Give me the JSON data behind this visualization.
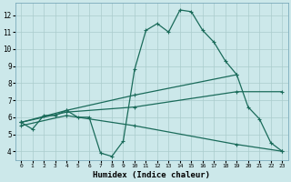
{
  "xlabel": "Humidex (Indice chaleur)",
  "ylabel": "",
  "xlim": [
    -0.5,
    23.5
  ],
  "ylim": [
    3.5,
    12.7
  ],
  "yticks": [
    4,
    5,
    6,
    7,
    8,
    9,
    10,
    11,
    12
  ],
  "xticks": [
    0,
    1,
    2,
    3,
    4,
    5,
    6,
    7,
    8,
    9,
    10,
    11,
    12,
    13,
    14,
    15,
    16,
    17,
    18,
    19,
    20,
    21,
    22,
    23
  ],
  "bg_color": "#cce8ea",
  "grid_color": "#aacccc",
  "line_color": "#1a6b5a",
  "line_width": 0.9,
  "marker": "+",
  "marker_size": 3.5,
  "line1": [
    [
      0,
      5.7
    ],
    [
      1,
      5.3
    ],
    [
      2,
      6.1
    ],
    [
      3,
      6.1
    ],
    [
      4,
      6.4
    ],
    [
      5,
      6.0
    ],
    [
      6,
      6.0
    ],
    [
      7,
      3.9
    ],
    [
      8,
      3.7
    ],
    [
      9,
      4.6
    ],
    [
      10,
      8.8
    ],
    [
      11,
      11.1
    ],
    [
      12,
      11.5
    ],
    [
      13,
      11.0
    ],
    [
      14,
      12.3
    ],
    [
      15,
      12.2
    ],
    [
      16,
      11.1
    ],
    [
      17,
      10.4
    ],
    [
      18,
      9.3
    ],
    [
      19,
      8.5
    ],
    [
      20,
      6.6
    ],
    [
      21,
      5.9
    ],
    [
      22,
      4.5
    ],
    [
      23,
      4.0
    ]
  ],
  "line2": [
    [
      0,
      5.7
    ],
    [
      4,
      6.4
    ],
    [
      10,
      7.3
    ],
    [
      19,
      8.5
    ]
  ],
  "line3": [
    [
      0,
      5.7
    ],
    [
      4,
      6.3
    ],
    [
      10,
      6.6
    ],
    [
      19,
      7.5
    ],
    [
      23,
      7.5
    ]
  ],
  "line4": [
    [
      0,
      5.5
    ],
    [
      4,
      6.1
    ],
    [
      10,
      5.5
    ],
    [
      19,
      4.4
    ],
    [
      23,
      4.0
    ]
  ]
}
